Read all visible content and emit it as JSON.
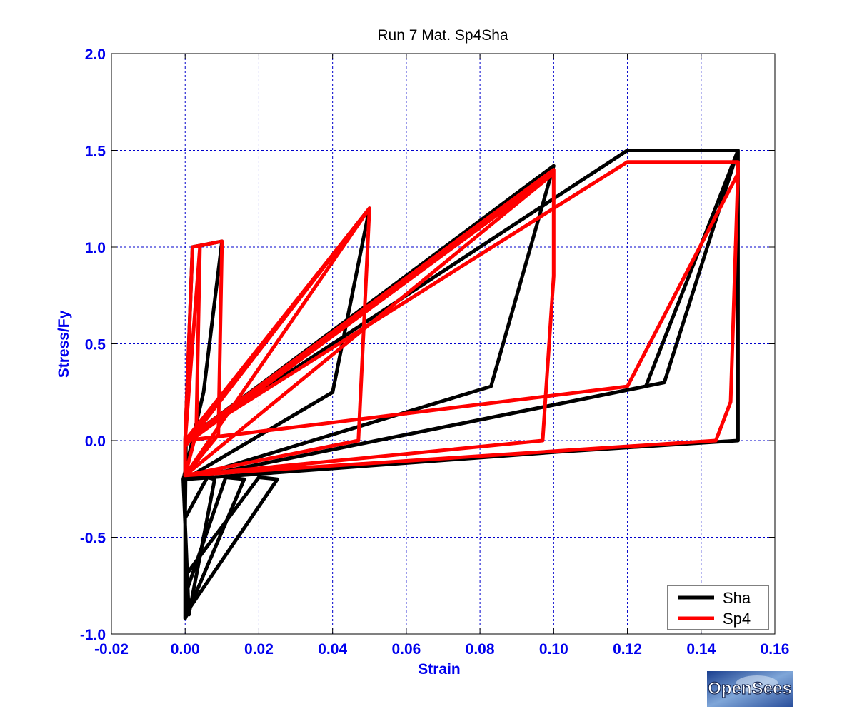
{
  "chart_data": {
    "type": "line",
    "title": "Run 7   Mat. Sp4Sha",
    "xlabel": "Strain",
    "ylabel": "Stress/Fy",
    "xlim": [
      -0.02,
      0.16
    ],
    "ylim": [
      -1.0,
      2.0
    ],
    "x_ticks": [
      -0.02,
      0.0,
      0.02,
      0.04,
      0.06,
      0.08,
      0.1,
      0.12,
      0.14,
      0.16
    ],
    "x_tick_labels": [
      "-0.02",
      "0.00",
      "0.02",
      "0.04",
      "0.06",
      "0.08",
      "0.10",
      "0.12",
      "0.14",
      "0.16"
    ],
    "y_ticks": [
      -1.0,
      -0.5,
      0.0,
      0.5,
      1.0,
      1.5,
      2.0
    ],
    "y_tick_labels": [
      "-1.0",
      "-0.5",
      "0.0",
      "0.5",
      "1.0",
      "1.5",
      "2.0"
    ],
    "grid": true,
    "legend_position": "bottom-right",
    "colors": {
      "axis_text": "#0000ee",
      "grid": "#0000cc",
      "frame": "#000000"
    },
    "series": [
      {
        "name": "Sha",
        "color": "#000000",
        "x": [
          0,
          0.002,
          0.01,
          0.005,
          -0.0005,
          0.001,
          0.008,
          0.006,
          0.0,
          0.0002,
          0.05,
          0.04,
          0.0,
          0.0,
          0.016,
          0.011,
          0.0,
          0.0,
          0.1,
          0.083,
          0.0,
          0.0,
          0.025,
          0.02,
          0.0,
          0.0,
          0.12,
          0.15,
          0.125,
          0.0,
          0.0,
          0.1,
          0.15,
          0.15,
          0.13,
          0.0
        ],
        "y": [
          0,
          1.0,
          1.03,
          0.25,
          -0.2,
          -0.9,
          -0.2,
          -0.19,
          -0.4,
          0.0,
          1.2,
          0.25,
          -0.2,
          -0.92,
          -0.2,
          -0.19,
          -0.8,
          0.0,
          1.42,
          0.28,
          -0.2,
          -0.9,
          -0.2,
          -0.19,
          -0.7,
          0.0,
          1.5,
          1.5,
          0.28,
          -0.2,
          -0.2,
          -0.06,
          0.0,
          1.5,
          0.3,
          -0.2
        ]
      },
      {
        "name": "Sp4",
        "color": "#ff0000",
        "x": [
          0,
          0.002,
          0.01,
          0.009,
          0.0,
          0.0,
          0.004,
          0.003,
          0.0,
          0.0,
          0.05,
          0.047,
          0.0,
          0.0,
          0.05,
          0.0,
          0.0,
          0.1,
          0.1,
          0.097,
          0.0,
          0.0,
          0.1,
          0.0,
          0.0,
          0.12,
          0.15,
          0.15,
          0.148,
          0.144,
          0.0,
          0.0,
          0.12,
          0.15,
          0.15
        ],
        "y": [
          0,
          1.0,
          1.03,
          0.03,
          -0.18,
          0.0,
          1.0,
          0.04,
          -0.18,
          0.0,
          1.2,
          0.0,
          -0.18,
          -0.03,
          1.2,
          -0.18,
          0.0,
          1.4,
          0.85,
          0.0,
          -0.18,
          -0.02,
          1.38,
          -0.18,
          0.0,
          1.44,
          1.44,
          1.38,
          0.2,
          0.0,
          -0.18,
          0.0,
          0.28,
          1.38,
          1.44
        ]
      }
    ]
  },
  "watermark": {
    "text": "OpenSees"
  }
}
